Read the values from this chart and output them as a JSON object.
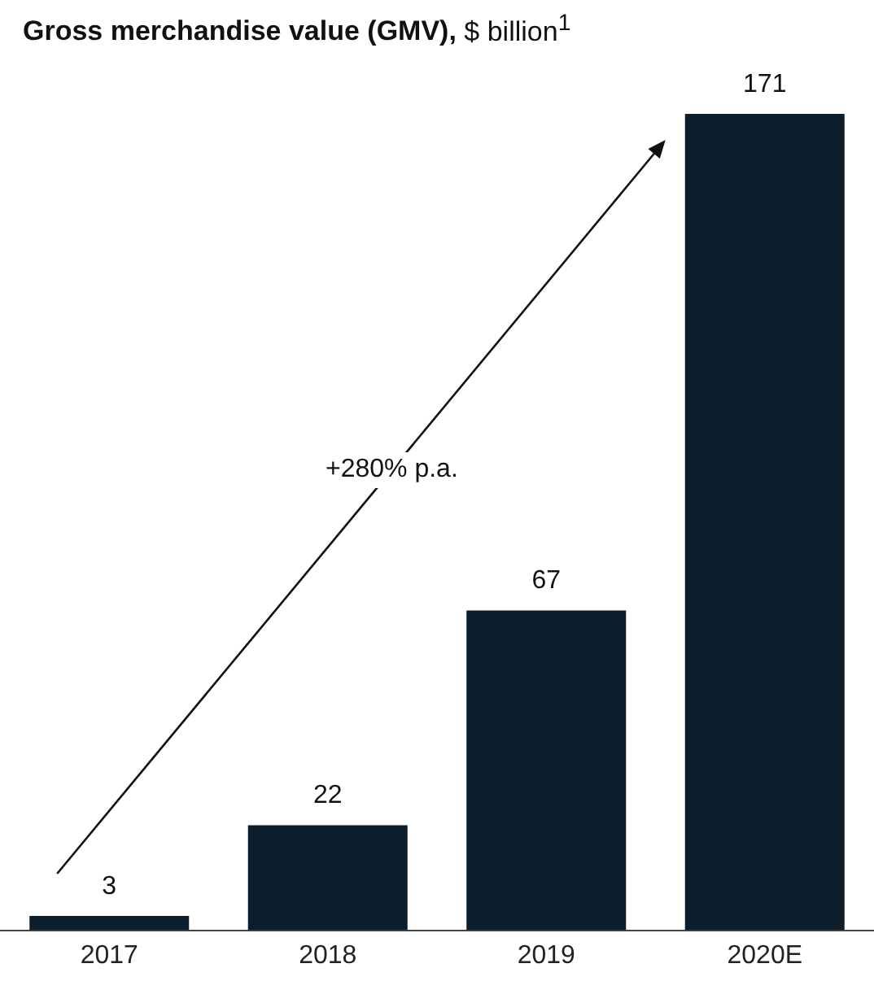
{
  "chart_data": {
    "type": "bar",
    "title": "Gross merchandise value (GMV),",
    "subtitle": "$ billion$^{1}$",
    "categories": [
      "2017",
      "2018",
      "2019",
      "2020E"
    ],
    "values": [
      3,
      22,
      67,
      171
    ],
    "color": "#0c1d2b",
    "data_labels": true,
    "grid": false,
    "legend": false,
    "annotations": [
      "+280% p.a."
    ]
  }
}
